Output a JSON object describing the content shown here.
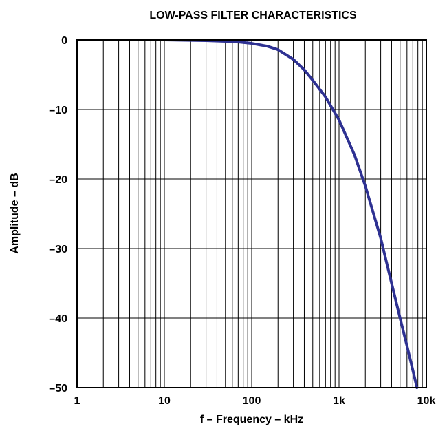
{
  "chart_data": {
    "type": "line",
    "title": "LOW-PASS FILTER CHARACTERISTICS",
    "xlabel": "f – Frequency – kHz",
    "ylabel": "Amplitude – dB",
    "x_scale": "log",
    "xlim": [
      1,
      10000
    ],
    "ylim": [
      -50,
      0
    ],
    "x_ticks": [
      {
        "value": 1,
        "label": "1"
      },
      {
        "value": 10,
        "label": "10"
      },
      {
        "value": 100,
        "label": "100"
      },
      {
        "value": 1000,
        "label": "1k"
      },
      {
        "value": 10000,
        "label": "10k"
      }
    ],
    "y_ticks": [
      {
        "value": 0,
        "label": "0"
      },
      {
        "value": -10,
        "label": "–10"
      },
      {
        "value": -20,
        "label": "–20"
      },
      {
        "value": -30,
        "label": "–30"
      },
      {
        "value": -40,
        "label": "–40"
      },
      {
        "value": -50,
        "label": "–50"
      }
    ],
    "grid": true,
    "series": [
      {
        "color": "#2e3192",
        "x": [
          1,
          10,
          30,
          50,
          70,
          100,
          150,
          200,
          300,
          400,
          500,
          700,
          1000,
          1500,
          2000,
          3000,
          4000,
          5000,
          6000,
          7000,
          7800
        ],
        "y": [
          0,
          0,
          -0.1,
          -0.2,
          -0.3,
          -0.5,
          -0.9,
          -1.4,
          -2.8,
          -4.3,
          -5.8,
          -8.2,
          -11.5,
          -16.5,
          -21,
          -28.5,
          -35,
          -40,
          -44,
          -47.5,
          -50
        ]
      }
    ]
  }
}
